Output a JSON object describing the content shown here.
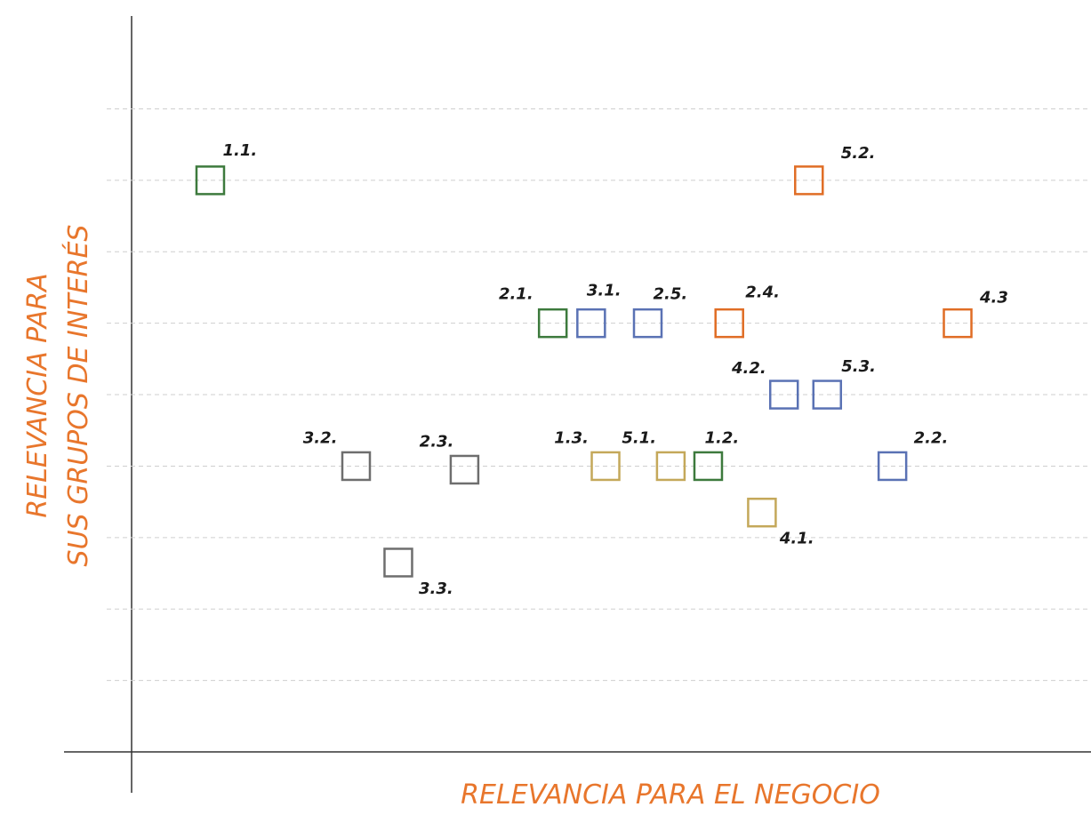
{
  "chart_data": {
    "type": "scatter",
    "xlabel": "RELEVANCIA PARA EL NEGOCIO",
    "ylabel": [
      "RELEVANCIA PARA",
      "SUS GRUPOS DE INTERÉS"
    ],
    "labels": [
      "1.1.",
      "5.2.",
      "2.1.",
      "3.1.",
      "2.5.",
      "2.4.",
      "4.3",
      "4.2.",
      "5.3.",
      "3.2.",
      "2.3.",
      "1.3.",
      "5.1.",
      "1.2.",
      "2.2.",
      "4.1.",
      "3.3."
    ],
    "x": [
      0.82,
      7.06,
      4.39,
      4.79,
      5.38,
      6.23,
      8.61,
      6.8,
      7.25,
      2.34,
      3.47,
      4.94,
      5.62,
      6.01,
      7.93,
      6.57,
      2.78
    ],
    "values": [
      8.0,
      8.0,
      6.0,
      6.0,
      6.0,
      6.0,
      6.0,
      5.0,
      5.0,
      4.0,
      3.95,
      4.0,
      4.0,
      4.0,
      4.0,
      3.35,
      2.65
    ],
    "colors": [
      "#3d7a3d",
      "#e06d25",
      "#3d7a3d",
      "#5a72b4",
      "#5a72b4",
      "#e06d25",
      "#e06d25",
      "#5a72b4",
      "#5a72b4",
      "#6e6e6e",
      "#6e6e6e",
      "#c4a85a",
      "#c4a85a",
      "#3d7a3d",
      "#5a72b4",
      "#c4a85a",
      "#6e6e6e"
    ],
    "xlim": [
      0,
      10
    ],
    "ylim": [
      0,
      10.3
    ],
    "yticks": [
      1,
      2,
      3,
      4,
      5,
      6,
      7,
      8,
      9
    ],
    "grid": true
  }
}
